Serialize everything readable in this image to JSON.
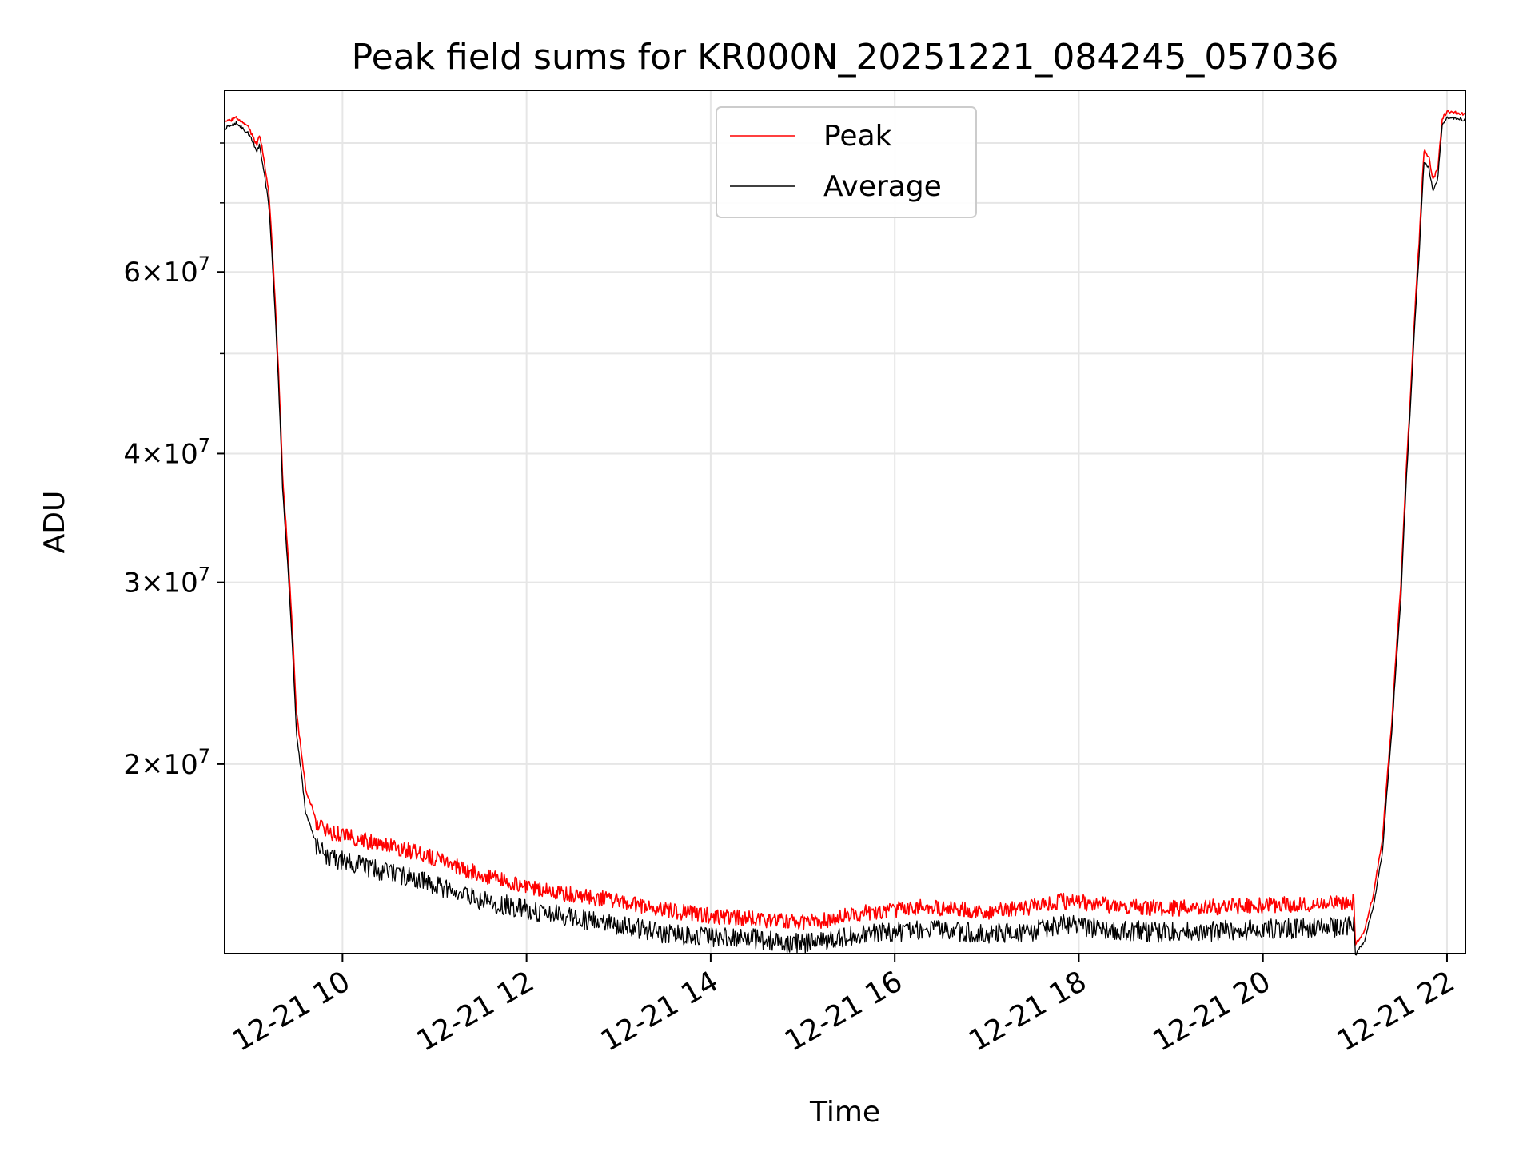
{
  "chart_data": {
    "type": "line",
    "title": "Peak field sums for KR000N_20251221_084245_057036",
    "xlabel": "Time",
    "ylabel": "ADU",
    "yscale": "log",
    "grid": true,
    "legend_position": "upper center",
    "xlim": [
      8.72,
      22.2
    ],
    "ylim": [
      13100000,
      90000000
    ],
    "x_ticks": [
      {
        "value": 10,
        "label": "12-21 10"
      },
      {
        "value": 12,
        "label": "12-21 12"
      },
      {
        "value": 14,
        "label": "12-21 14"
      },
      {
        "value": 16,
        "label": "12-21 16"
      },
      {
        "value": 18,
        "label": "12-21 18"
      },
      {
        "value": 20,
        "label": "12-21 20"
      },
      {
        "value": 22,
        "label": "12-21 22"
      }
    ],
    "y_ticks_major": [
      {
        "value": 20000000,
        "mantissa": "2",
        "base": "10",
        "exp": "7"
      },
      {
        "value": 30000000,
        "mantissa": "3",
        "base": "10",
        "exp": "7"
      },
      {
        "value": 40000000,
        "mantissa": "4",
        "base": "10",
        "exp": "7"
      },
      {
        "value": 60000000,
        "mantissa": "6",
        "base": "10",
        "exp": "7"
      }
    ],
    "y_ticks_minor": [
      50000000,
      70000000,
      80000000
    ],
    "series": [
      {
        "name": "Peak",
        "color": "#ff0000",
        "x": [
          8.72,
          8.85,
          8.98,
          9.07,
          9.1,
          9.2,
          9.35,
          9.5,
          9.6,
          9.7,
          9.85,
          10.2,
          10.6,
          11.0,
          11.5,
          12.0,
          12.5,
          13.0,
          13.5,
          14.0,
          14.5,
          15.0,
          15.3,
          15.6,
          16.0,
          16.3,
          16.6,
          17.0,
          17.5,
          17.8,
          18.2,
          18.6,
          19.0,
          19.5,
          20.0,
          20.5,
          20.99,
          21.0,
          21.1,
          21.2,
          21.3,
          21.4,
          21.5,
          21.6,
          21.7,
          21.75,
          21.8,
          21.85,
          21.9,
          21.95,
          22.0,
          22.1,
          22.2
        ],
        "y": [
          84000000,
          85000000,
          83000000,
          80000000,
          82000000,
          72000000,
          38000000,
          22500000,
          19000000,
          17900000,
          17500000,
          17200000,
          16900000,
          16500000,
          15900000,
          15500000,
          15200000,
          15000000,
          14700000,
          14500000,
          14400000,
          14300000,
          14400000,
          14600000,
          14700000,
          14800000,
          14750000,
          14650000,
          14800000,
          15000000,
          14900000,
          14800000,
          14750000,
          14800000,
          14850000,
          14900000,
          14950000,
          13400000,
          13800000,
          15000000,
          17000000,
          22000000,
          30000000,
          45000000,
          65000000,
          79000000,
          78000000,
          74000000,
          76000000,
          85000000,
          86000000,
          86000000,
          85500000
        ]
      },
      {
        "name": "Average",
        "color": "#000000",
        "x": [
          8.72,
          8.85,
          8.98,
          9.07,
          9.1,
          9.2,
          9.35,
          9.5,
          9.6,
          9.7,
          9.85,
          10.2,
          10.6,
          11.0,
          11.5,
          12.0,
          12.5,
          13.0,
          13.5,
          14.0,
          14.5,
          15.0,
          15.3,
          15.6,
          16.0,
          16.3,
          16.6,
          17.0,
          17.5,
          17.8,
          18.2,
          18.6,
          19.0,
          19.5,
          20.0,
          20.5,
          20.99,
          21.0,
          21.1,
          21.2,
          21.3,
          21.4,
          21.5,
          21.6,
          21.7,
          21.75,
          21.8,
          21.85,
          21.9,
          21.95,
          22.0,
          22.1,
          22.2
        ],
        "y": [
          83000000,
          84000000,
          82000000,
          79000000,
          80000000,
          70000000,
          37000000,
          21500000,
          18000000,
          17000000,
          16600000,
          16300000,
          16000000,
          15600000,
          15100000,
          14800000,
          14500000,
          14300000,
          14000000,
          13900000,
          13850000,
          13700000,
          13800000,
          13950000,
          14050000,
          14150000,
          14100000,
          14000000,
          14100000,
          14300000,
          14200000,
          14100000,
          14050000,
          14100000,
          14150000,
          14200000,
          14250000,
          13100000,
          13500000,
          14600000,
          16500000,
          21500000,
          29000000,
          44000000,
          63000000,
          77000000,
          76000000,
          72000000,
          74000000,
          84000000,
          85000000,
          85000000,
          84500000
        ]
      }
    ]
  }
}
